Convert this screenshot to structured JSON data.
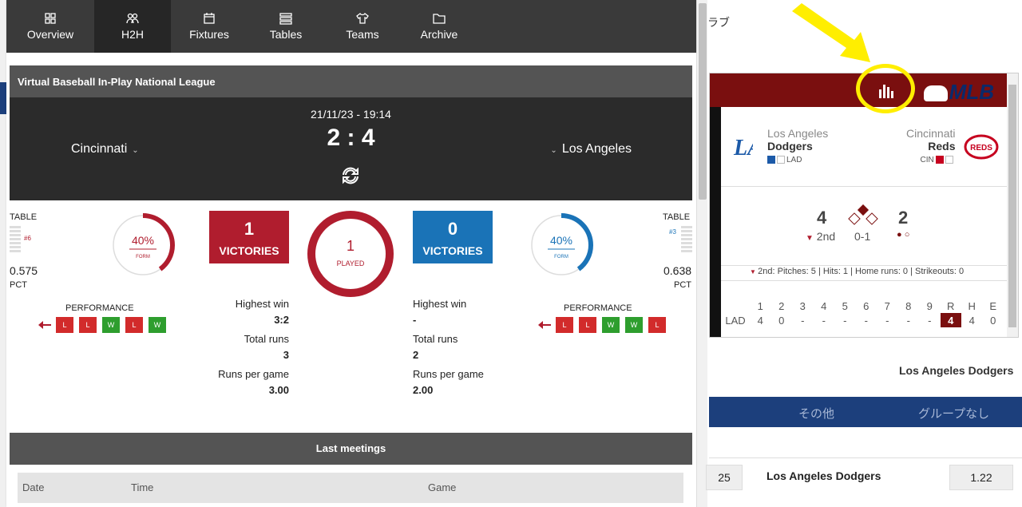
{
  "nav": {
    "tabs": [
      {
        "label": "Overview",
        "icon": "overview-icon"
      },
      {
        "label": "H2H",
        "icon": "h2h-icon"
      },
      {
        "label": "Fixtures",
        "icon": "calendar-icon"
      },
      {
        "label": "Tables",
        "icon": "table-icon"
      },
      {
        "label": "Teams",
        "icon": "shirt-icon"
      },
      {
        "label": "Archive",
        "icon": "folder-icon"
      }
    ],
    "active": "H2H"
  },
  "league": "Virtual Baseball In-Play National League",
  "match": {
    "date": "21/11/23 - 19:14",
    "score": "2 : 4",
    "home": "Cincinnati",
    "away": "Los Angeles"
  },
  "home_stats": {
    "table_label": "TABLE",
    "rank": "#6",
    "pct": "0.575",
    "pct_label": "PCT",
    "form_pct": "40%",
    "form_label": "FORM",
    "victories": "1",
    "victories_label": "VICTORIES",
    "performance_label": "PERFORMANCE",
    "performance": [
      "L",
      "L",
      "W",
      "L",
      "W"
    ],
    "highest_win_label": "Highest win",
    "highest_win": "3:2",
    "total_runs_label": "Total runs",
    "total_runs": "3",
    "rpg_label": "Runs per game",
    "rpg": "3.00",
    "color": "#b01d2e"
  },
  "played": {
    "count": "1",
    "label": "PLAYED"
  },
  "away_stats": {
    "table_label": "TABLE",
    "rank": "#3",
    "pct": "0.638",
    "pct_label": "PCT",
    "form_pct": "40%",
    "form_label": "FORM",
    "victories": "0",
    "victories_label": "VICTORIES",
    "performance_label": "PERFORMANCE",
    "performance": [
      "L",
      "L",
      "W",
      "W",
      "L"
    ],
    "highest_win_label": "Highest win",
    "highest_win": "-",
    "total_runs_label": "Total runs",
    "total_runs": "2",
    "rpg_label": "Runs per game",
    "rpg": "2.00",
    "color": "#1a73b7"
  },
  "last_meetings": {
    "title": "Last meetings",
    "columns": [
      "Date",
      "Time",
      "Game"
    ]
  },
  "right": {
    "jp_text": "ラブ",
    "widget": {
      "brand": "MLB",
      "away_city": "Los Angeles",
      "away_name": "Dodgers",
      "away_abbr": "LAD",
      "home_city": "Cincinnati",
      "home_name": "Reds",
      "home_abbr": "CIN",
      "away_score": "4",
      "home_score": "2",
      "inning": "2nd",
      "count": "0-1",
      "pitch_info": "2nd:  Pitches: 5  |  Hits: 1  |  Home runs: 0  |  Strikeouts: 0",
      "innings": [
        "1",
        "2",
        "3",
        "4",
        "5",
        "6",
        "7",
        "8",
        "9",
        "R",
        "H",
        "E"
      ],
      "lad_row": [
        "LAD",
        "4",
        "0",
        "-",
        "-",
        "-",
        "-",
        "-",
        "-",
        "-",
        "4",
        "4",
        "0"
      ]
    },
    "team_heading": "Los Angeles Dodgers",
    "tabs": [
      "その他",
      "グループなし"
    ],
    "bet": {
      "left_odd": "25",
      "team": "Los Angeles Dodgers",
      "odd": "1.22"
    }
  }
}
